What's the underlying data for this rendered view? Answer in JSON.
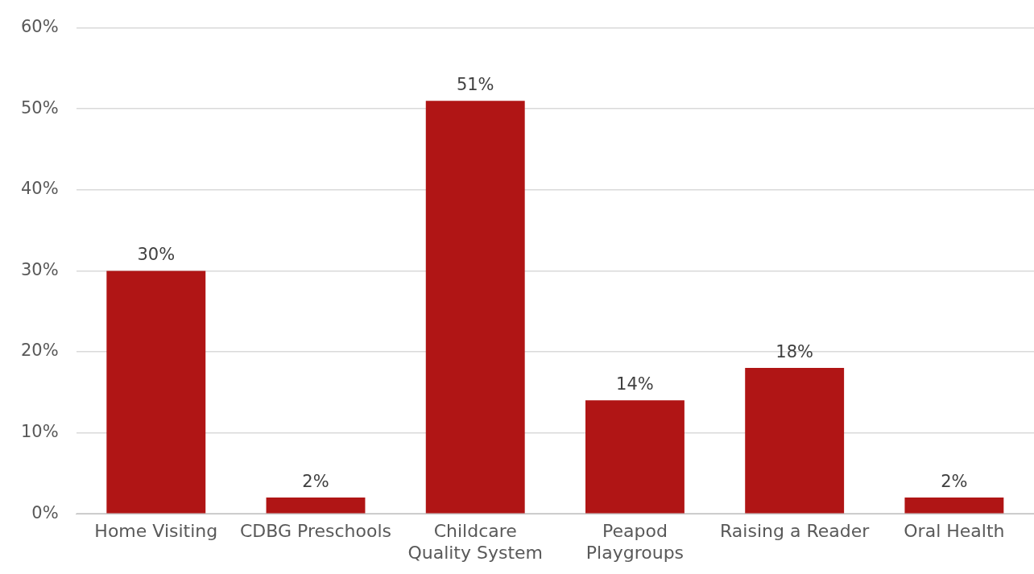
{
  "chart_data": {
    "type": "bar",
    "categories": [
      "Home Visiting",
      "CDBG Preschools",
      "Childcare Quality System",
      "Peapod Playgroups",
      "Raising a Reader",
      "Oral Health"
    ],
    "values": [
      30,
      2,
      51,
      14,
      18,
      2
    ],
    "value_labels": [
      "30%",
      "2%",
      "51%",
      "14%",
      "18%",
      "2%"
    ],
    "color": "#b01515",
    "ylim": [
      0,
      60
    ],
    "yticks": [
      {
        "value": 0,
        "label": "0%"
      },
      {
        "value": 10,
        "label": "10%"
      },
      {
        "value": 20,
        "label": "20%"
      },
      {
        "value": 30,
        "label": "30%"
      },
      {
        "value": 40,
        "label": "40%"
      },
      {
        "value": 50,
        "label": "50%"
      },
      {
        "value": 60,
        "label": "60%"
      }
    ],
    "grid": "y",
    "legend": false
  }
}
